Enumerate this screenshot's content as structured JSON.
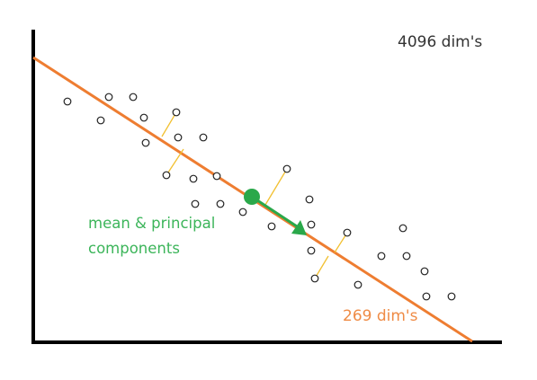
{
  "labels": {
    "top_dims": "4096 dim's",
    "mean_components": "mean & principal components",
    "bottom_dims": "269 dim's"
  },
  "colors": {
    "axes": "#000000",
    "principal_line": "#ee7d31",
    "projection_lines": "#f2c030",
    "mean_arrow": "#2aa84a",
    "points_stroke": "#222222",
    "label_top": "#333333",
    "label_pca": "#3cb55a",
    "label_bottom": "#ef8b45"
  },
  "icons": {
    "mean": "filled-circle",
    "direction": "arrow-head-triangle",
    "points": "hollow-circle"
  }
}
